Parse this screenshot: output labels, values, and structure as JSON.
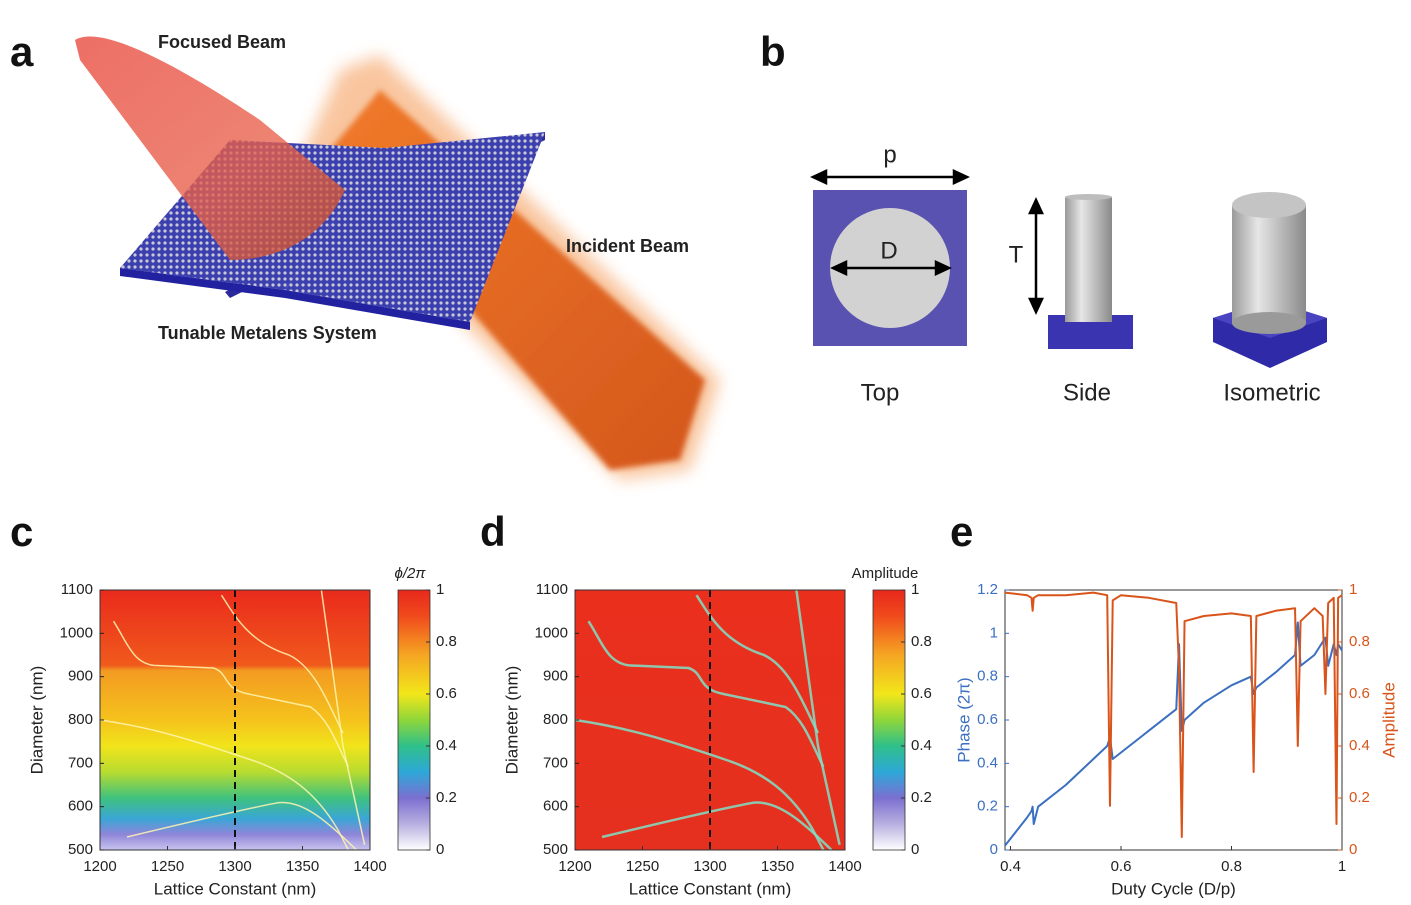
{
  "panels": {
    "a": {
      "letter": "a",
      "focused_beam": "Focused Beam",
      "incident_beam": "Incident Beam",
      "system": "Tunable Metalens System"
    },
    "b": {
      "letter": "b",
      "p": "p",
      "D": "D",
      "T": "T",
      "views": [
        "Top",
        "Side",
        "Isometric"
      ]
    }
  },
  "chart_data": [
    {
      "letter": "c",
      "type": "heatmap",
      "xlabel": "Lattice Constant (nm)",
      "ylabel": "Diameter (nm)",
      "xlim": [
        1200,
        1400
      ],
      "xticks": [
        1200,
        1250,
        1300,
        1350,
        1400
      ],
      "ylim": [
        500,
        1100
      ],
      "yticks": [
        500,
        600,
        700,
        800,
        900,
        1000,
        1100
      ],
      "vline": 1300,
      "clabel": "ϕ/2π",
      "clim": [
        0,
        1
      ],
      "cticks": [
        0,
        0.2,
        0.4,
        0.6,
        0.8,
        1
      ]
    },
    {
      "letter": "d",
      "type": "heatmap",
      "xlabel": "Lattice Constant (nm)",
      "ylabel": "Diameter (nm)",
      "xlim": [
        1200,
        1400
      ],
      "xticks": [
        1200,
        1250,
        1300,
        1350,
        1400
      ],
      "ylim": [
        500,
        1100
      ],
      "yticks": [
        500,
        600,
        700,
        800,
        900,
        1000,
        1100
      ],
      "vline": 1300,
      "clabel": "Amplitude",
      "clim": [
        0,
        1
      ],
      "cticks": [
        0,
        0.2,
        0.4,
        0.6,
        0.8,
        1
      ]
    },
    {
      "letter": "e",
      "type": "line",
      "xlabel": "Duty Cycle (D/p)",
      "xlim": [
        0.39,
        1
      ],
      "xticks": [
        0.4,
        0.6,
        0.8,
        1
      ],
      "ylim": [
        0,
        1.2
      ],
      "yticks": [
        0,
        0.2,
        0.4,
        0.6,
        0.8,
        1,
        1.2
      ],
      "y2lim": [
        0,
        1
      ],
      "y2ticks": [
        0,
        0.2,
        0.4,
        0.6,
        0.8,
        1
      ],
      "x": [
        0.39,
        0.43,
        0.438,
        0.44,
        0.442,
        0.45,
        0.5,
        0.55,
        0.575,
        0.58,
        0.585,
        0.6,
        0.65,
        0.7,
        0.705,
        0.71,
        0.715,
        0.75,
        0.8,
        0.835,
        0.84,
        0.845,
        0.88,
        0.915,
        0.92,
        0.925,
        0.95,
        0.965,
        0.97,
        0.975,
        0.985,
        0.99,
        0.993,
        1.0
      ],
      "series": [
        {
          "name": "Phase (2π)",
          "color": "#3b6fc1",
          "values": [
            0.02,
            0.15,
            0.18,
            0.2,
            0.12,
            0.2,
            0.3,
            0.42,
            0.48,
            0.52,
            0.42,
            0.45,
            0.55,
            0.65,
            0.95,
            0.55,
            0.6,
            0.68,
            0.76,
            0.8,
            0.72,
            0.75,
            0.82,
            0.9,
            1.05,
            0.85,
            0.9,
            0.96,
            0.98,
            0.85,
            0.95,
            0.9,
            0.95,
            0.92
          ]
        },
        {
          "name": "Amplitude",
          "color": "#d9541a",
          "axis": "y2",
          "values": [
            0.99,
            0.98,
            0.97,
            0.92,
            0.97,
            0.98,
            0.98,
            0.99,
            0.98,
            0.17,
            0.96,
            0.98,
            0.97,
            0.95,
            0.7,
            0.05,
            0.88,
            0.9,
            0.91,
            0.9,
            0.3,
            0.9,
            0.92,
            0.93,
            0.4,
            0.88,
            0.93,
            0.9,
            0.6,
            0.95,
            0.97,
            0.1,
            0.97,
            0.98
          ]
        }
      ]
    }
  ]
}
